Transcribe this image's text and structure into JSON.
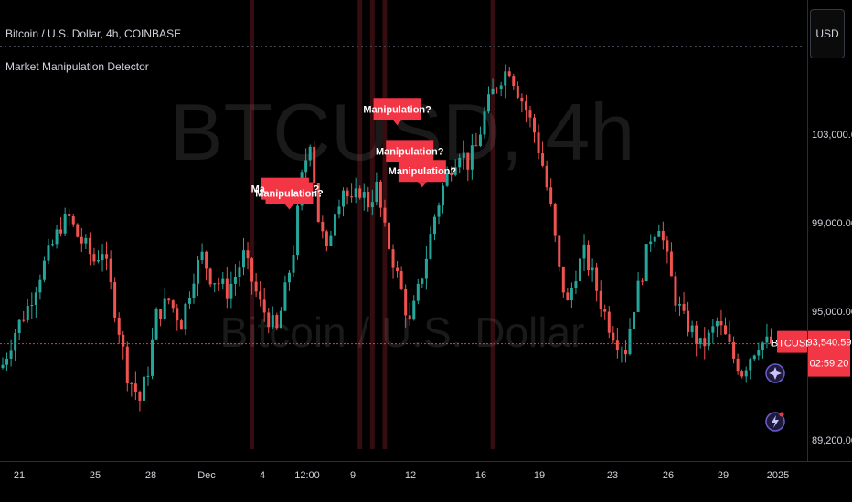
{
  "header": {
    "symbol_legend": "Bitcoin / U.S. Dollar, 4h, COINBASE",
    "indicator_legend": "Market Manipulation Detector",
    "currency_button": "USD"
  },
  "watermark": {
    "ticker": "BTCUSD, 4h",
    "name": "Bitcoin / U.S. Dollar"
  },
  "price_axis": {
    "ticks": [
      "103,000.00",
      "99,000.00",
      "95,000.00",
      "89,200.00"
    ],
    "last_price_symbol": "BTCUSD",
    "last_price": "93,540.59",
    "countdown": "02:59:20"
  },
  "time_axis": {
    "ticks": [
      "21",
      "25",
      "28",
      "Dec",
      "4",
      "12:00",
      "9",
      "12",
      "16",
      "19",
      "23",
      "26",
      "29",
      "2025"
    ]
  },
  "colors": {
    "up": "#26a69a",
    "down": "#ef5350",
    "marker": "#f23645",
    "background": "#000000",
    "current_line": "#f23645"
  },
  "markers": [
    {
      "text": "Manipulation?"
    },
    {
      "text": "Manipulation?"
    },
    {
      "text": "Manipulation?"
    },
    {
      "text": "Manipulation?"
    },
    {
      "text": "Manipulation?"
    }
  ],
  "chart_data": {
    "type": "candlestick",
    "title": "Bitcoin / U.S. Dollar, 4h, COINBASE",
    "x_axis": [
      "21",
      "25",
      "28",
      "Dec",
      "4",
      "12:00",
      "9",
      "12",
      "16",
      "19",
      "23",
      "26",
      "29",
      "2025"
    ],
    "y_range": [
      89200,
      106500
    ],
    "y_ticks": [
      103000,
      99000,
      95000,
      89200
    ],
    "current_price": 93540.59,
    "close_path": [
      [
        0,
        92600
      ],
      [
        3,
        94100
      ],
      [
        6,
        95200
      ],
      [
        9,
        96700
      ],
      [
        12,
        98000
      ],
      [
        14,
        98900
      ],
      [
        16,
        99200
      ],
      [
        18,
        98400
      ],
      [
        20,
        97900
      ],
      [
        22,
        97300
      ],
      [
        24,
        97800
      ],
      [
        26,
        96100
      ],
      [
        28,
        94200
      ],
      [
        30,
        92200
      ],
      [
        33,
        91000
      ],
      [
        35,
        92400
      ],
      [
        37,
        94800
      ],
      [
        40,
        95500
      ],
      [
        43,
        94500
      ],
      [
        46,
        96700
      ],
      [
        48,
        97500
      ],
      [
        50,
        96600
      ],
      [
        52,
        96300
      ],
      [
        54,
        95900
      ],
      [
        56,
        96600
      ],
      [
        58,
        97500
      ],
      [
        60,
        96400
      ],
      [
        62,
        95300
      ],
      [
        64,
        94700
      ],
      [
        66,
        94100
      ],
      [
        68,
        95900
      ],
      [
        70,
        97800
      ],
      [
        72,
        101000
      ],
      [
        74,
        102800
      ],
      [
        76,
        99200
      ],
      [
        78,
        97600
      ],
      [
        80,
        99700
      ],
      [
        82,
        100600
      ],
      [
        84,
        99800
      ],
      [
        86,
        100500
      ],
      [
        88,
        99900
      ],
      [
        90,
        100600
      ],
      [
        92,
        98600
      ],
      [
        94,
        97300
      ],
      [
        96,
        95900
      ],
      [
        98,
        94400
      ],
      [
        100,
        95900
      ],
      [
        102,
        97500
      ],
      [
        104,
        99300
      ],
      [
        106,
        100600
      ],
      [
        108,
        101600
      ],
      [
        110,
        102300
      ],
      [
        112,
        101700
      ],
      [
        114,
        102400
      ],
      [
        116,
        103900
      ],
      [
        118,
        104900
      ],
      [
        120,
        105600
      ],
      [
        122,
        106000
      ],
      [
        124,
        105000
      ],
      [
        126,
        104100
      ],
      [
        128,
        103100
      ],
      [
        130,
        101600
      ],
      [
        132,
        99600
      ],
      [
        134,
        96800
      ],
      [
        136,
        95300
      ],
      [
        138,
        96800
      ],
      [
        140,
        97600
      ],
      [
        142,
        96600
      ],
      [
        144,
        95400
      ],
      [
        146,
        94400
      ],
      [
        148,
        93700
      ],
      [
        150,
        93300
      ],
      [
        152,
        95300
      ],
      [
        154,
        96800
      ],
      [
        156,
        98400
      ],
      [
        158,
        99000
      ],
      [
        160,
        97300
      ],
      [
        162,
        95600
      ],
      [
        164,
        94600
      ],
      [
        166,
        94100
      ],
      [
        168,
        93400
      ],
      [
        170,
        93800
      ],
      [
        172,
        94500
      ],
      [
        174,
        93800
      ],
      [
        176,
        92900
      ],
      [
        178,
        92300
      ],
      [
        180,
        93000
      ],
      [
        182,
        93600
      ],
      [
        185,
        93540.59
      ]
    ],
    "markers": [
      {
        "candle": 68,
        "label": "Manipulation?",
        "price": 99800
      },
      {
        "candle": 69,
        "label": "Manipulation?",
        "price": 99600
      },
      {
        "candle": 95,
        "label": "Manipulation?",
        "price": 103400
      },
      {
        "candle": 98,
        "label": "Manipulation?",
        "price": 101500
      },
      {
        "candle": 101,
        "label": "Manipulation?",
        "price": 100600
      }
    ],
    "highlight_bands": [
      60,
      86,
      89,
      92,
      118
    ]
  }
}
